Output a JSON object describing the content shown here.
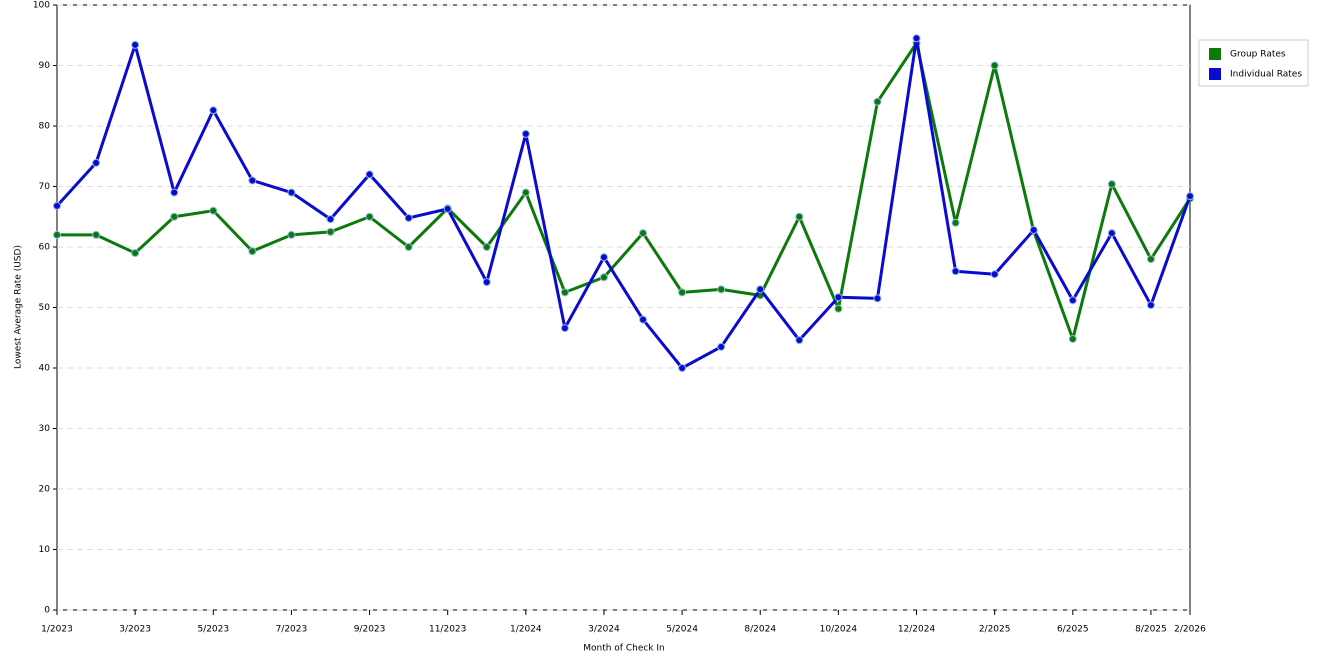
{
  "chart_data": {
    "type": "line",
    "x_label": "Month of Check In",
    "y_label": "Lowest Average Rate (USD)",
    "categories": [
      "1/2023",
      null,
      "3/2023",
      null,
      "5/2023",
      null,
      "7/2023",
      null,
      "9/2023",
      null,
      "11/2023",
      null,
      "1/2024",
      null,
      "3/2024",
      null,
      "5/2024",
      null,
      "8/2024",
      null,
      "10/2024",
      null,
      "12/2024",
      null,
      "2/2025",
      null,
      "6/2025",
      null,
      "8/2025",
      "2/2026"
    ],
    "series": [
      {
        "name": "Group Rates",
        "color": "#0b7a0b",
        "values": [
          62,
          62,
          59,
          65,
          66,
          59.3,
          62,
          62.5,
          65,
          60,
          66.4,
          60,
          69,
          52.5,
          55,
          62.3,
          52.5,
          53,
          52,
          65,
          49.8,
          84,
          93.7,
          64,
          90,
          62.6,
          44.8,
          70.4,
          58,
          68
        ]
      },
      {
        "name": "Individual Rates",
        "color": "#0a0ad0",
        "values": [
          66.8,
          73.9,
          93.4,
          69,
          82.6,
          71,
          69,
          64.6,
          72,
          64.8,
          66.3,
          54.2,
          78.7,
          46.6,
          58.3,
          48,
          40,
          43.5,
          53,
          44.6,
          51.7,
          51.5,
          94.5,
          56,
          55.5,
          62.8,
          51.2,
          62.3,
          50.4,
          68.4
        ]
      }
    ],
    "ylim": [
      0,
      100
    ],
    "yticks": [
      0,
      10,
      20,
      30,
      40,
      50,
      60,
      70,
      80,
      90,
      100
    ],
    "grid": true,
    "legend": "right"
  }
}
